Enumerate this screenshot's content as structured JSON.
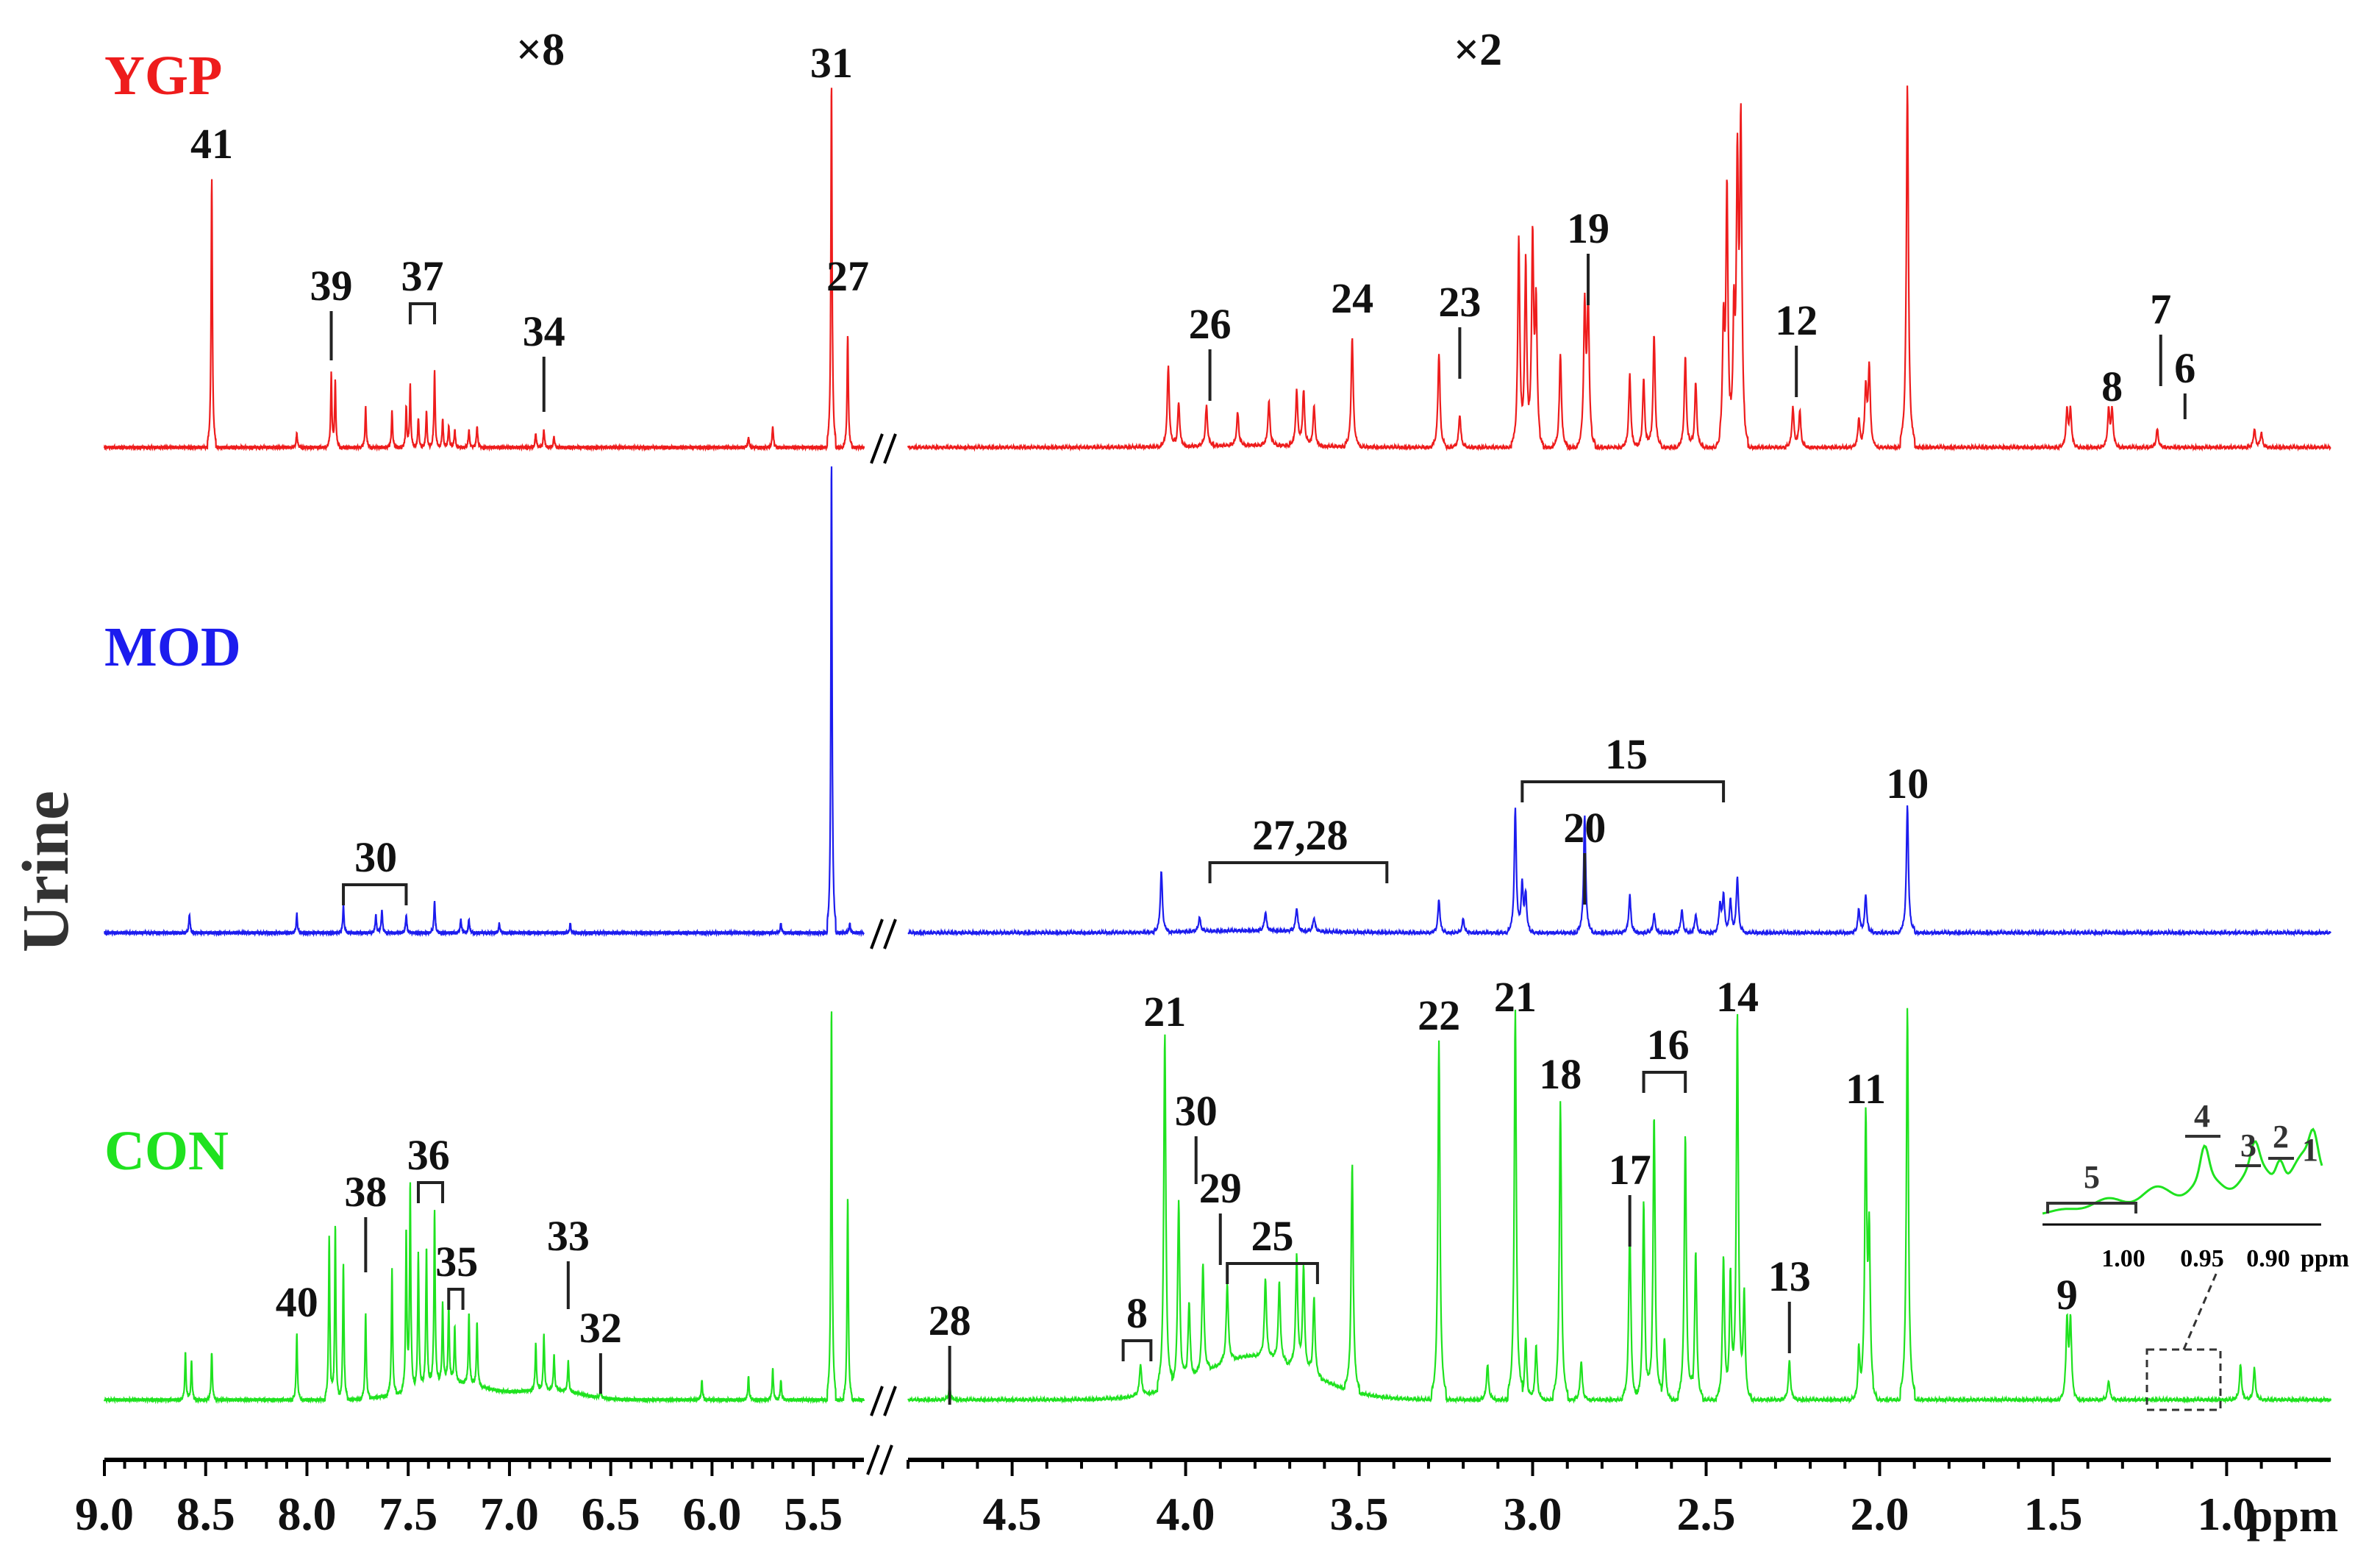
{
  "chart_data": {
    "type": "line",
    "ylabel": "Urine",
    "x_unit": "ppm",
    "x_ticks": [
      "9.0",
      "8.5",
      "8.0",
      "7.5",
      "7.0",
      "6.5",
      "6.0",
      "5.5",
      "4.5",
      "4.0",
      "3.5",
      "3.0",
      "2.5",
      "2.0",
      "1.5",
      "1.0"
    ],
    "scale_factors": [
      "×8",
      "×2"
    ],
    "series": [
      {
        "name": "YGP",
        "color": "#ee1c1c",
        "peaks": [
          [
            8.47,
            0.74
          ],
          [
            8.05,
            0.04
          ],
          [
            7.88,
            0.2
          ],
          [
            7.86,
            0.18
          ],
          [
            7.71,
            0.11
          ],
          [
            7.58,
            0.1
          ],
          [
            7.51,
            0.11
          ],
          [
            7.49,
            0.17
          ],
          [
            7.45,
            0.08
          ],
          [
            7.41,
            0.1
          ],
          [
            7.37,
            0.21
          ],
          [
            7.33,
            0.08
          ],
          [
            7.3,
            0.06
          ],
          [
            7.27,
            0.05
          ],
          [
            7.2,
            0.05
          ],
          [
            7.16,
            0.06
          ],
          [
            6.87,
            0.04
          ],
          [
            6.83,
            0.05
          ],
          [
            6.78,
            0.03
          ],
          [
            5.7,
            0.06
          ],
          [
            5.82,
            0.03
          ],
          [
            5.41,
            1.0
          ],
          [
            5.33,
            0.31
          ],
          [
            4.05,
            0.22
          ],
          [
            4.02,
            0.12
          ],
          [
            3.94,
            0.11
          ],
          [
            3.85,
            0.09
          ],
          [
            3.76,
            0.12
          ],
          [
            3.68,
            0.15
          ],
          [
            3.66,
            0.15
          ],
          [
            3.63,
            0.11
          ],
          [
            3.52,
            0.3
          ],
          [
            3.27,
            0.26
          ],
          [
            3.21,
            0.09
          ],
          [
            3.04,
            0.57
          ],
          [
            3.02,
            0.5
          ],
          [
            3.0,
            0.56
          ],
          [
            2.99,
            0.38
          ],
          [
            2.92,
            0.26
          ],
          [
            2.85,
            0.38
          ],
          [
            2.84,
            0.4
          ],
          [
            2.72,
            0.2
          ],
          [
            2.68,
            0.19
          ],
          [
            2.65,
            0.31
          ],
          [
            2.56,
            0.25
          ],
          [
            2.53,
            0.18
          ],
          [
            2.45,
            0.32
          ],
          [
            2.44,
            0.7
          ],
          [
            2.42,
            0.32
          ],
          [
            2.41,
            0.74
          ],
          [
            2.4,
            0.86
          ],
          [
            2.25,
            0.11
          ],
          [
            2.23,
            0.1
          ],
          [
            2.06,
            0.08
          ],
          [
            2.04,
            0.16
          ],
          [
            2.03,
            0.22
          ],
          [
            1.92,
            1.0
          ],
          [
            1.46,
            0.1
          ],
          [
            1.45,
            0.1
          ],
          [
            1.34,
            0.1
          ],
          [
            1.33,
            0.1
          ],
          [
            1.2,
            0.05
          ],
          [
            0.92,
            0.05
          ],
          [
            0.9,
            0.04
          ]
        ]
      },
      {
        "name": "MOD",
        "color": "#1c1cee",
        "peaks": [
          [
            8.58,
            0.04
          ],
          [
            8.05,
            0.04
          ],
          [
            7.82,
            0.06
          ],
          [
            7.66,
            0.04
          ],
          [
            7.63,
            0.05
          ],
          [
            7.51,
            0.04
          ],
          [
            7.37,
            0.07
          ],
          [
            7.24,
            0.03
          ],
          [
            7.2,
            0.03
          ],
          [
            7.05,
            0.02
          ],
          [
            6.7,
            0.02
          ],
          [
            5.66,
            0.02
          ],
          [
            5.41,
            1.0
          ],
          [
            5.32,
            0.02
          ],
          [
            4.07,
            0.13
          ],
          [
            3.96,
            0.03
          ],
          [
            3.77,
            0.04
          ],
          [
            3.68,
            0.05
          ],
          [
            3.63,
            0.03
          ],
          [
            3.27,
            0.07
          ],
          [
            3.2,
            0.03
          ],
          [
            3.05,
            0.26
          ],
          [
            3.03,
            0.1
          ],
          [
            3.02,
            0.08
          ],
          [
            2.85,
            0.25
          ],
          [
            2.72,
            0.08
          ],
          [
            2.65,
            0.04
          ],
          [
            2.57,
            0.05
          ],
          [
            2.53,
            0.04
          ],
          [
            2.46,
            0.06
          ],
          [
            2.45,
            0.08
          ],
          [
            2.43,
            0.07
          ],
          [
            2.41,
            0.12
          ],
          [
            2.06,
            0.05
          ],
          [
            2.04,
            0.08
          ],
          [
            1.92,
            0.27
          ]
        ]
      },
      {
        "name": "CON",
        "color": "#1fe21f",
        "peaks": [
          [
            8.6,
            0.12
          ],
          [
            8.57,
            0.1
          ],
          [
            8.47,
            0.12
          ],
          [
            8.05,
            0.17
          ],
          [
            7.89,
            0.42
          ],
          [
            7.86,
            0.45
          ],
          [
            7.82,
            0.35
          ],
          [
            7.71,
            0.22
          ],
          [
            7.58,
            0.32
          ],
          [
            7.51,
            0.4
          ],
          [
            7.49,
            0.52
          ],
          [
            7.45,
            0.34
          ],
          [
            7.41,
            0.35
          ],
          [
            7.37,
            0.44
          ],
          [
            7.33,
            0.2
          ],
          [
            7.3,
            0.2
          ],
          [
            7.27,
            0.14
          ],
          [
            7.2,
            0.18
          ],
          [
            7.16,
            0.16
          ],
          [
            6.87,
            0.12
          ],
          [
            6.83,
            0.14
          ],
          [
            6.78,
            0.09
          ],
          [
            6.71,
            0.08
          ],
          [
            6.55,
            0.02
          ],
          [
            6.05,
            0.05
          ],
          [
            5.82,
            0.06
          ],
          [
            5.7,
            0.08
          ],
          [
            5.66,
            0.05
          ],
          [
            5.41,
            1.0
          ],
          [
            5.33,
            0.52
          ],
          [
            4.68,
            0.03
          ],
          [
            4.13,
            0.08
          ],
          [
            4.06,
            0.91
          ],
          [
            4.02,
            0.47
          ],
          [
            3.99,
            0.2
          ],
          [
            3.95,
            0.28
          ],
          [
            3.88,
            0.2
          ],
          [
            3.77,
            0.2
          ],
          [
            3.73,
            0.2
          ],
          [
            3.68,
            0.28
          ],
          [
            3.66,
            0.26
          ],
          [
            3.63,
            0.2
          ],
          [
            3.52,
            0.58
          ],
          [
            3.27,
            0.91
          ],
          [
            3.13,
            0.09
          ],
          [
            3.05,
            0.99
          ],
          [
            3.02,
            0.16
          ],
          [
            2.99,
            0.14
          ],
          [
            2.92,
            0.76
          ],
          [
            2.86,
            0.1
          ],
          [
            2.72,
            0.45
          ],
          [
            2.68,
            0.51
          ],
          [
            2.65,
            0.73
          ],
          [
            2.62,
            0.16
          ],
          [
            2.56,
            0.68
          ],
          [
            2.53,
            0.38
          ],
          [
            2.45,
            0.36
          ],
          [
            2.43,
            0.3
          ],
          [
            2.41,
            0.97
          ],
          [
            2.39,
            0.26
          ],
          [
            2.26,
            0.1
          ],
          [
            2.06,
            0.12
          ],
          [
            2.04,
            0.7
          ],
          [
            2.03,
            0.4
          ],
          [
            1.92,
            1.0
          ],
          [
            1.46,
            0.2
          ],
          [
            1.45,
            0.2
          ],
          [
            1.34,
            0.05
          ],
          [
            0.96,
            0.09
          ],
          [
            0.92,
            0.08
          ]
        ]
      }
    ],
    "annotations": [
      {
        "label": "41",
        "x": 8.47,
        "series": "YGP"
      },
      {
        "label": "39",
        "x": 7.88,
        "series": "YGP"
      },
      {
        "label": "37",
        "x": 7.43,
        "series": "YGP"
      },
      {
        "label": "34",
        "x": 6.83,
        "series": "YGP"
      },
      {
        "label": "31",
        "x": 5.41,
        "series": "YGP"
      },
      {
        "label": "27",
        "x": 5.33,
        "series": "YGP"
      },
      {
        "label": "26",
        "x": 3.93,
        "series": "YGP"
      },
      {
        "label": "24",
        "x": 3.52,
        "series": "YGP"
      },
      {
        "label": "23",
        "x": 3.21,
        "series": "YGP"
      },
      {
        "label": "19",
        "x": 2.84,
        "series": "YGP"
      },
      {
        "label": "12",
        "x": 2.24,
        "series": "YGP"
      },
      {
        "label": "8",
        "x": 1.33,
        "series": "YGP"
      },
      {
        "label": "7",
        "x": 1.19,
        "series": "YGP"
      },
      {
        "label": "6",
        "x": 1.12,
        "series": "YGP"
      },
      {
        "label": "30",
        "x": 7.66,
        "series": "MOD"
      },
      {
        "label": "27,28",
        "x": 3.67,
        "series": "MOD"
      },
      {
        "label": "20",
        "x": 2.85,
        "series": "MOD"
      },
      {
        "label": "15",
        "x": 2.73,
        "series": "MOD"
      },
      {
        "label": "10",
        "x": 1.92,
        "series": "MOD"
      },
      {
        "label": "40",
        "x": 8.05,
        "series": "CON"
      },
      {
        "label": "38",
        "x": 7.71,
        "series": "CON"
      },
      {
        "label": "36",
        "x": 7.4,
        "series": "CON"
      },
      {
        "label": "35",
        "x": 7.26,
        "series": "CON"
      },
      {
        "label": "33",
        "x": 6.71,
        "series": "CON"
      },
      {
        "label": "32",
        "x": 6.55,
        "series": "CON"
      },
      {
        "label": "28",
        "x": 4.68,
        "series": "CON"
      },
      {
        "label": "8",
        "x": 4.14,
        "series": "CON"
      },
      {
        "label": "21",
        "x": 4.06,
        "series": "CON"
      },
      {
        "label": "30",
        "x": 3.97,
        "series": "CON"
      },
      {
        "label": "29",
        "x": 3.9,
        "series": "CON"
      },
      {
        "label": "25",
        "x": 3.75,
        "series": "CON"
      },
      {
        "label": "22",
        "x": 3.27,
        "series": "CON"
      },
      {
        "label": "21",
        "x": 3.05,
        "series": "CON"
      },
      {
        "label": "18",
        "x": 2.92,
        "series": "CON"
      },
      {
        "label": "17",
        "x": 2.72,
        "series": "CON"
      },
      {
        "label": "16",
        "x": 2.61,
        "series": "CON"
      },
      {
        "label": "14",
        "x": 2.41,
        "series": "CON"
      },
      {
        "label": "13",
        "x": 2.26,
        "series": "CON"
      },
      {
        "label": "11",
        "x": 2.04,
        "series": "CON"
      },
      {
        "label": "9",
        "x": 1.46,
        "series": "CON"
      }
    ],
    "inset": {
      "ticks": [
        "1.00",
        "0.95",
        "0.90"
      ],
      "unit": "ppm",
      "labels": [
        "5",
        "4",
        "3",
        "2",
        "1"
      ]
    }
  }
}
